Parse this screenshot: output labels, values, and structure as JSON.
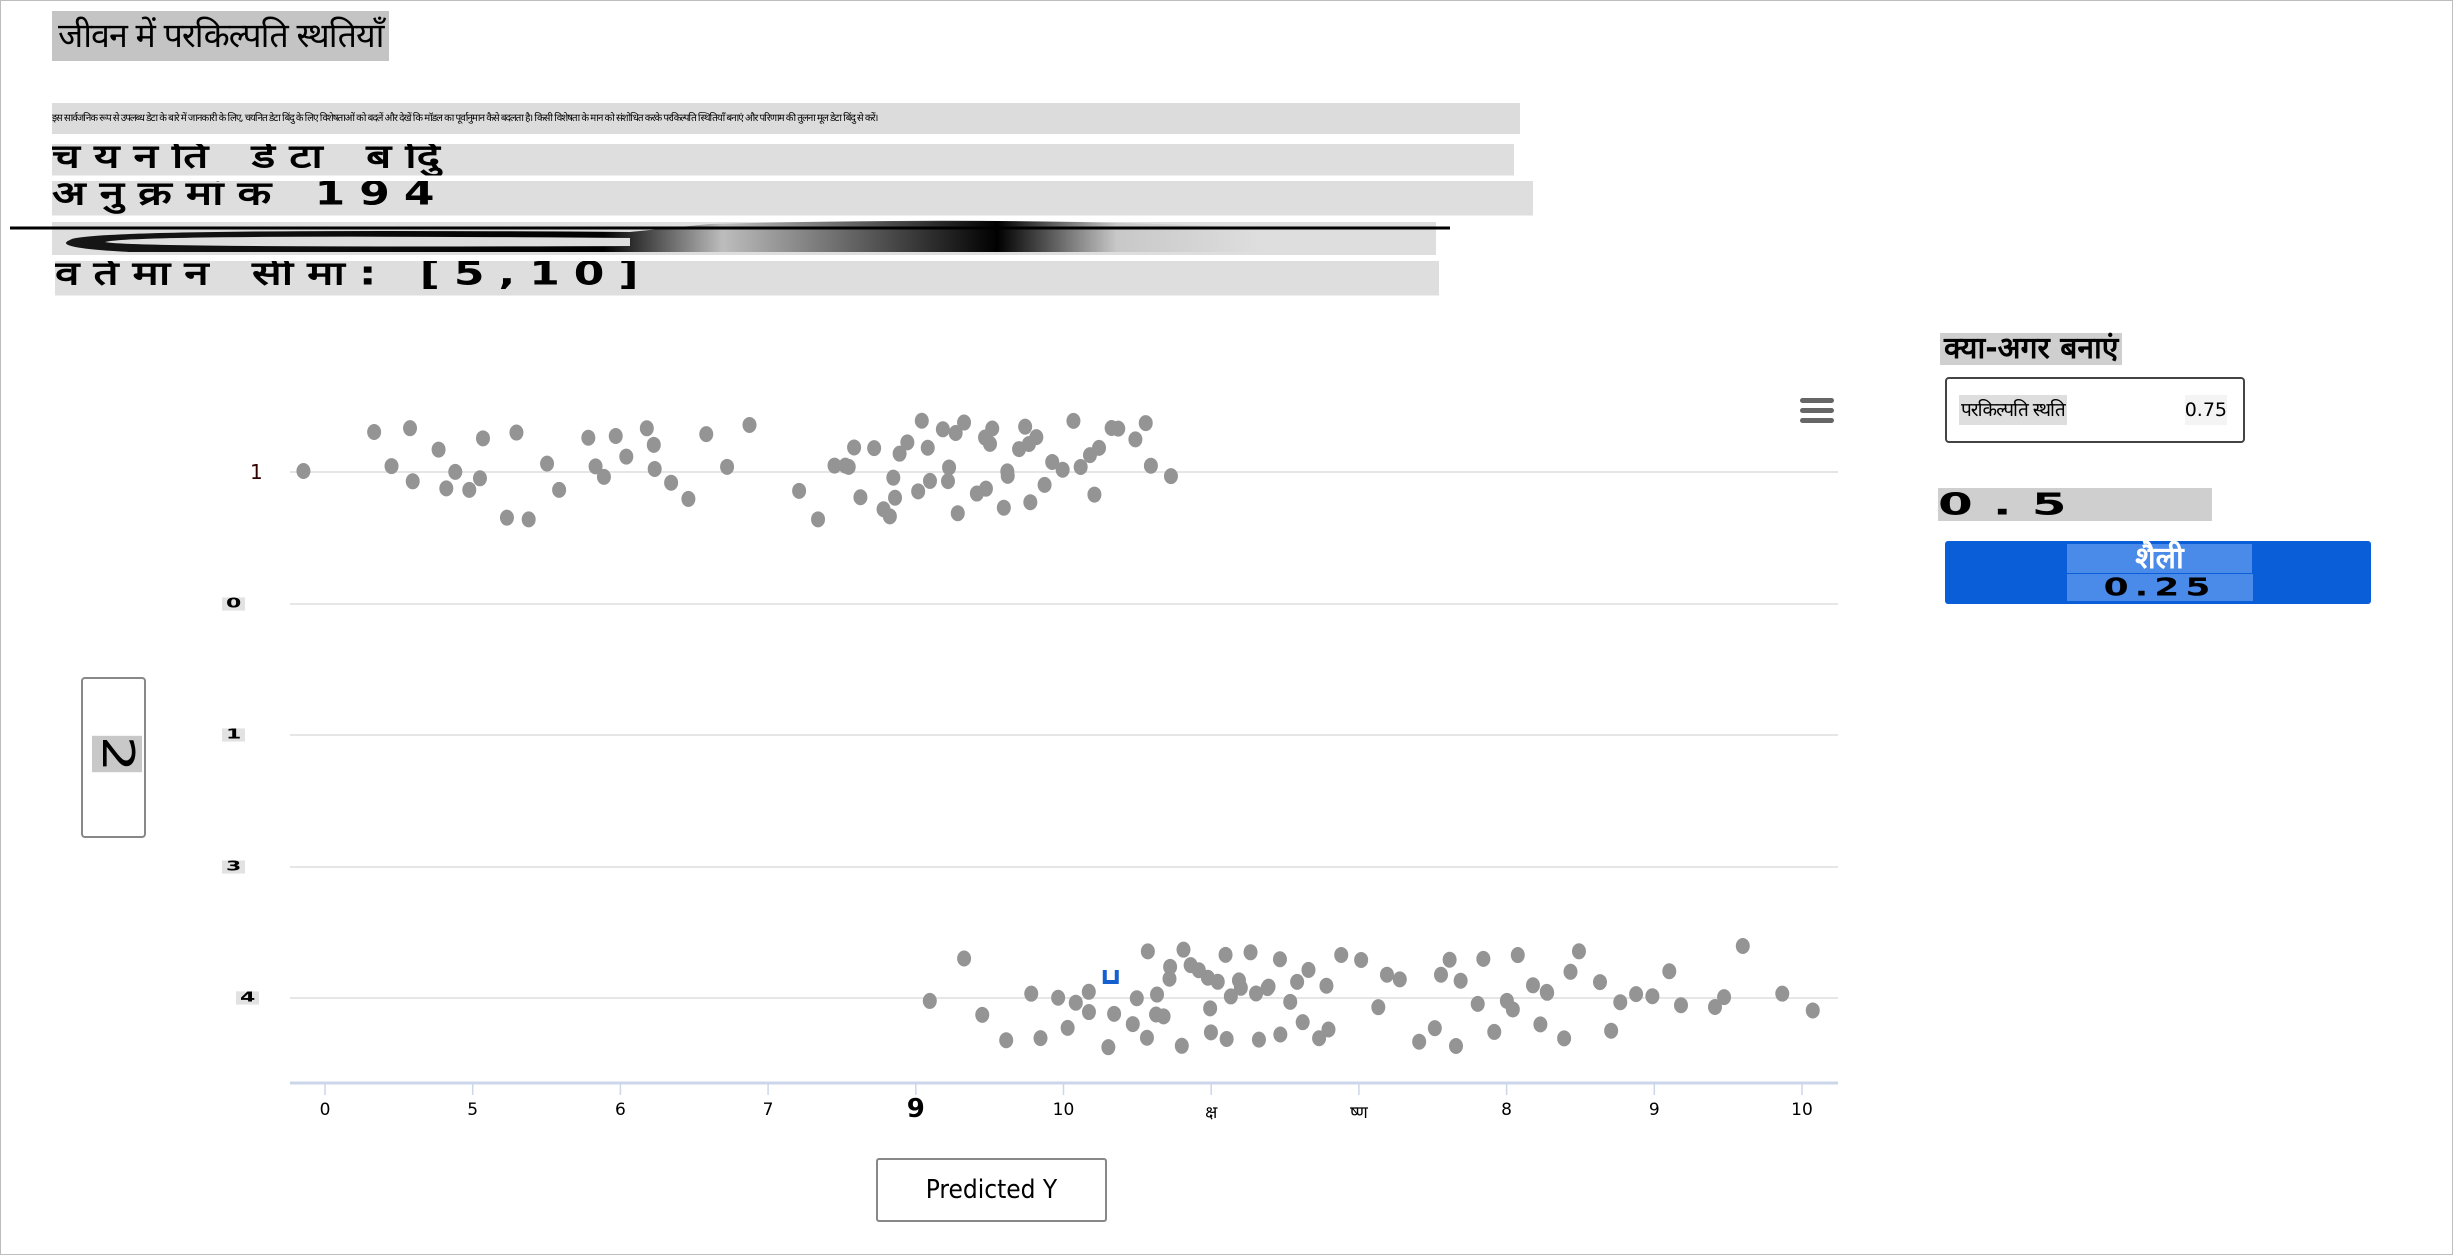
{
  "page": {
    "title": "जीवन में परकिल्पति स्थतियाँ",
    "description": "इस सार्वजनिक रूप से उपलब्ध डेटा के बारे में जानकारी के लिए, चयनित डेटा बिंदु के लिए विशेषताओं को बदलें और देखें कि मॉडल का पूर्वानुमान कैसे बदलता है। किसी विशेषता के मान को संशोधित करके परकिल्पति स्थितियाँ बनाएं और परिणाम की तुलना मूल डेटा बिंदु से करें।",
    "selected_point_label": "चयनति डेटा बदिु",
    "index_label": "अनुक्रमांक 194",
    "range_label": "वर्तमान सीमा: [5,10]"
  },
  "whatif": {
    "heading": "क्या-अगर बनाएं",
    "dropdown_label": "परकिल्पति स्थति",
    "dropdown_value": "0.75",
    "value_display": "0.5",
    "style_button_label": "शैली",
    "style_button_value": "0.25",
    "accent_color": "#0a5fd8"
  },
  "axis_controls": {
    "y_button_label": "2",
    "x_button_label": "Predicted Y"
  },
  "chart_data": {
    "type": "scatter",
    "menu_icon": "hamburger-menu-icon",
    "y_categories": [
      "1",
      "0",
      "1",
      "3",
      "4"
    ],
    "x_tick_labels": [
      "0",
      "5",
      "6",
      "7",
      "9",
      "10",
      "क्ष",
      "ष्ण",
      "8",
      "9",
      "10"
    ],
    "xlim": [
      -0.2,
      10.2
    ],
    "grid": true,
    "point_color": "#949494",
    "highlight_color": "#1560d0",
    "series": [
      {
        "category_index": 0,
        "x": [
          -0.15,
          0.35,
          0.45,
          0.55,
          0.6,
          0.75,
          0.85,
          0.9,
          1.0,
          1.05,
          1.1,
          1.2,
          1.3,
          1.4,
          1.5,
          1.6,
          1.75,
          1.85,
          1.9,
          1.95,
          2.05,
          2.15,
          2.2,
          2.25,
          2.35,
          2.45,
          2.6,
          2.75,
          2.88,
          3.2,
          3.35,
          3.45,
          3.5,
          3.55,
          3.6,
          3.65,
          3.7,
          3.75,
          3.8,
          3.85,
          3.88,
          3.9,
          3.95,
          4.0,
          4.05,
          4.05,
          4.1,
          4.15,
          4.2,
          4.22,
          4.25,
          4.3,
          4.35,
          4.4,
          4.45,
          4.48,
          4.5,
          4.55,
          4.6,
          4.62,
          4.65,
          4.7,
          4.75,
          4.78,
          4.8,
          4.85,
          4.9,
          4.95,
          5.0,
          5.05,
          5.1,
          5.15,
          5.2,
          5.25,
          5.3,
          5.4,
          5.5,
          5.55,
          5.6,
          5.7
        ]
      },
      {
        "category_index": 4,
        "x": [
          4.1,
          4.3,
          4.45,
          4.6,
          4.75,
          4.85,
          4.95,
          5.0,
          5.05,
          5.15,
          5.2,
          5.3,
          5.35,
          5.45,
          5.5,
          5.55,
          5.58,
          5.6,
          5.65,
          5.7,
          5.72,
          5.75,
          5.8,
          5.82,
          5.85,
          5.9,
          5.95,
          6.0,
          6.02,
          6.05,
          6.1,
          6.12,
          6.15,
          6.2,
          6.22,
          6.25,
          6.3,
          6.35,
          6.4,
          6.42,
          6.45,
          6.5,
          6.55,
          6.6,
          6.62,
          6.65,
          6.7,
          6.75,
          6.8,
          6.9,
          7.0,
          7.1,
          7.2,
          7.3,
          7.4,
          7.5,
          7.55,
          7.6,
          7.65,
          7.7,
          7.8,
          7.85,
          7.9,
          8.0,
          8.05,
          8.1,
          8.15,
          8.2,
          8.25,
          8.3,
          8.4,
          8.45,
          8.5,
          8.6,
          8.7,
          8.8,
          8.9,
          9.0,
          9.1,
          9.2,
          9.4,
          9.5,
          9.6,
          9.9,
          10.1
        ]
      }
    ],
    "highlighted_point": {
      "category_index": 4,
      "x": 5.32
    }
  }
}
